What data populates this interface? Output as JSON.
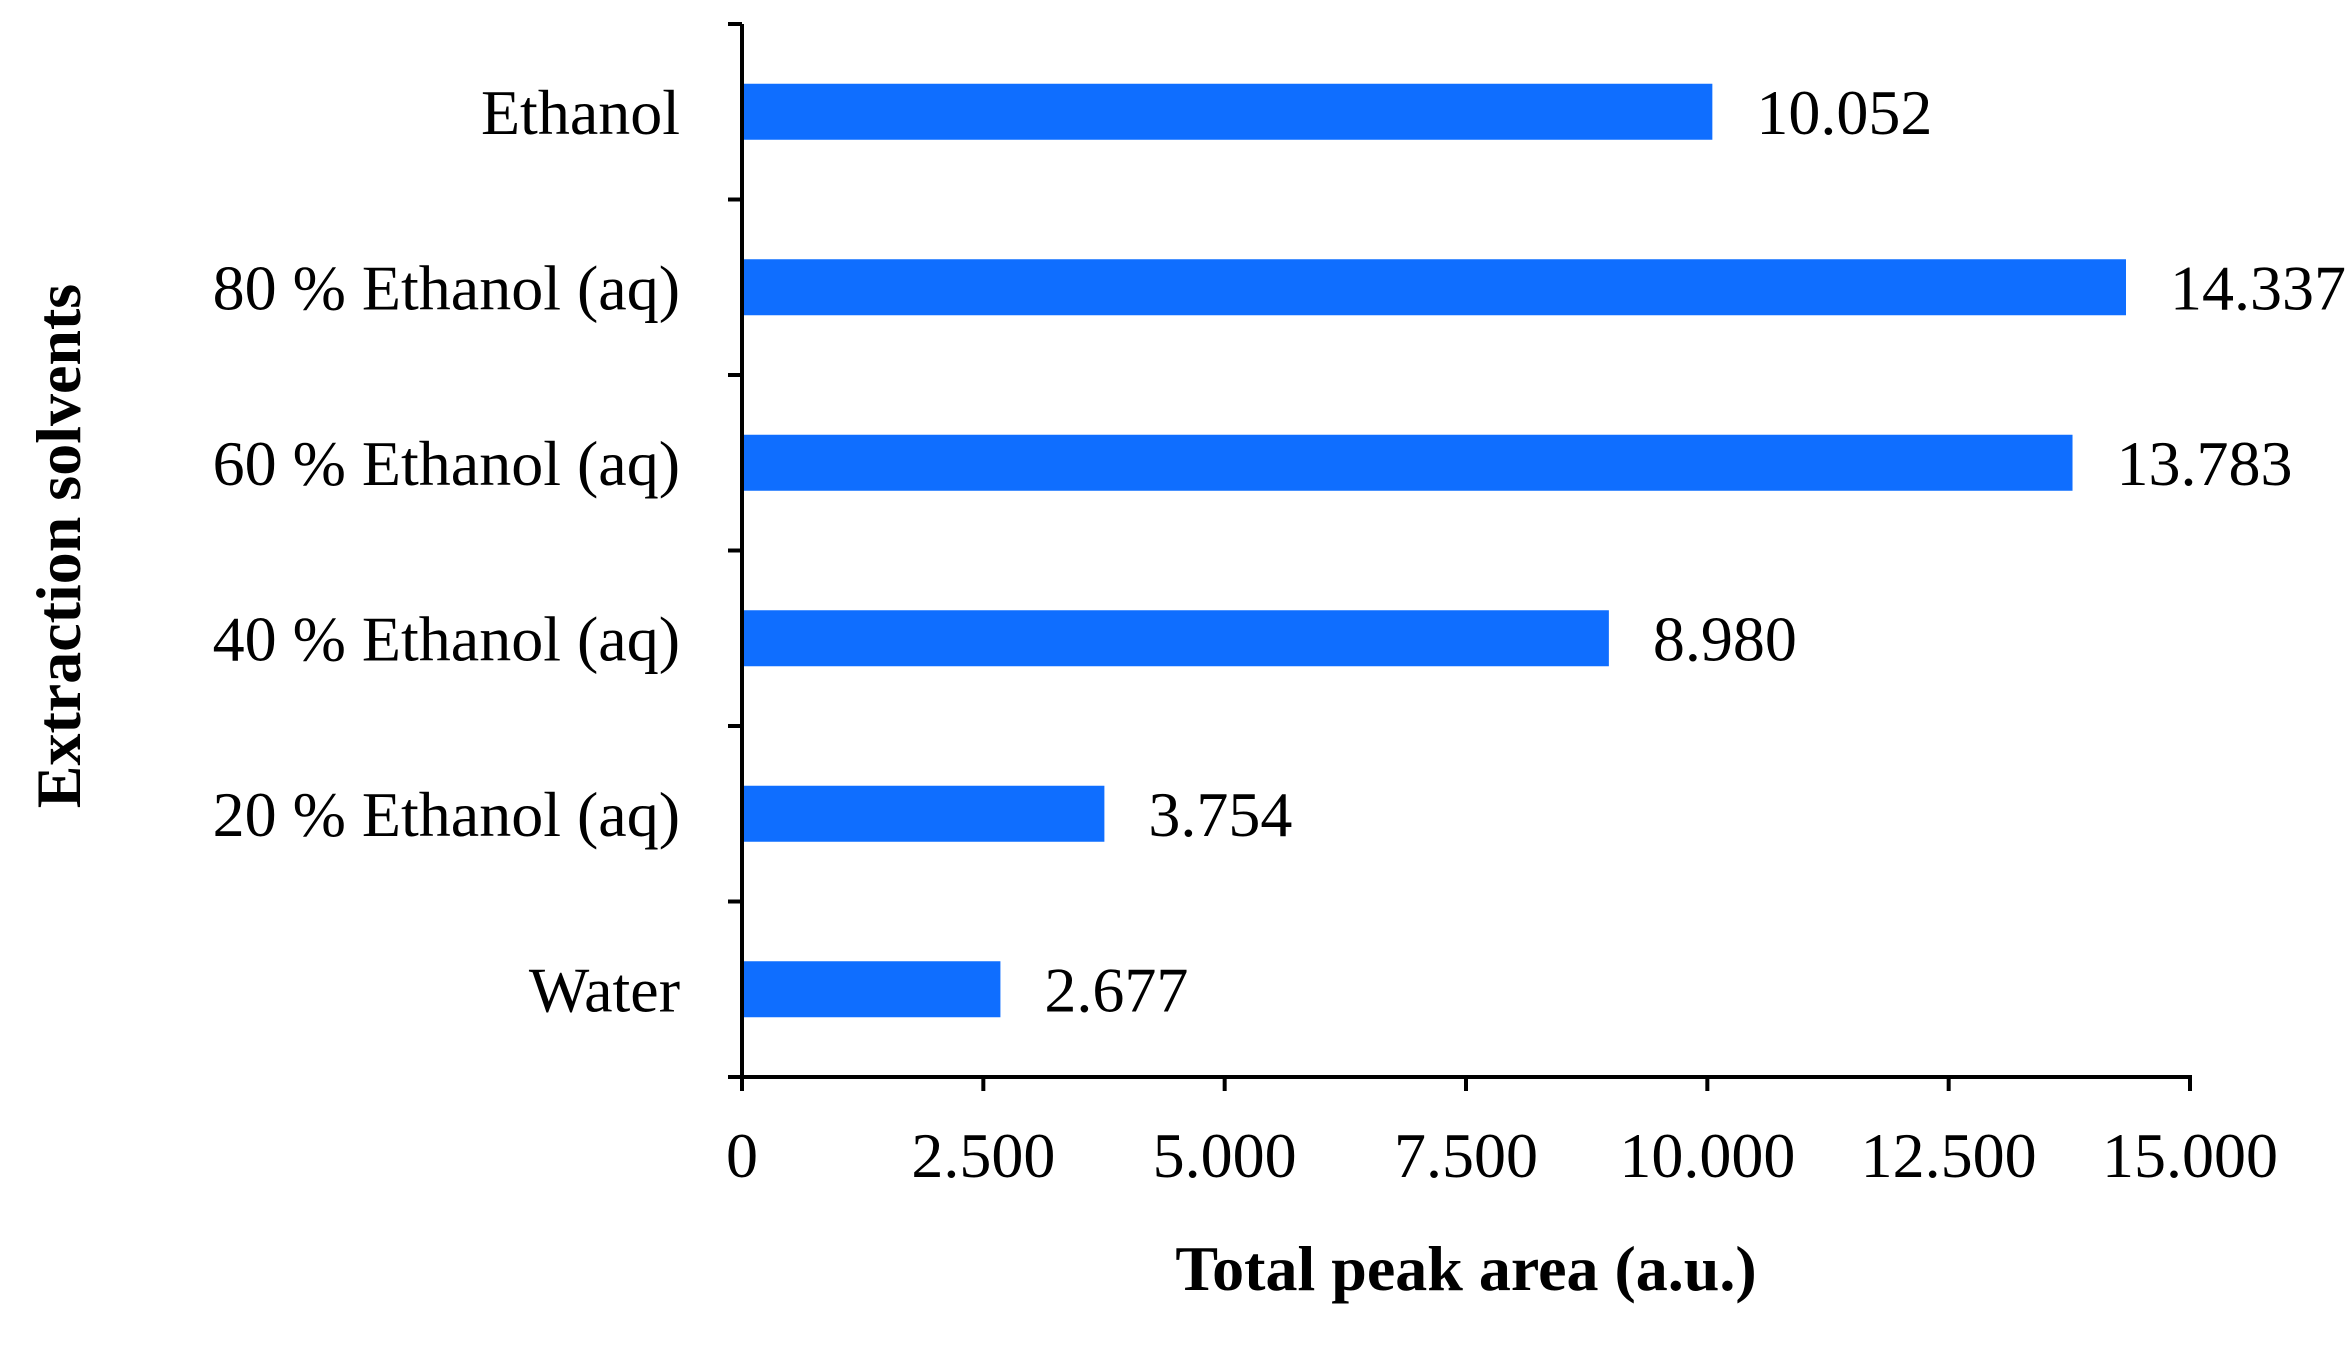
{
  "chart_data": {
    "type": "bar",
    "orientation": "horizontal",
    "categories": [
      "Water",
      "20 % Ethanol (aq)",
      "40 % Ethanol (aq)",
      "60 % Ethanol (aq)",
      "80 % Ethanol (aq)",
      "Ethanol"
    ],
    "values": [
      2.677,
      3.754,
      8.98,
      13.783,
      14.337,
      10.052
    ],
    "value_labels": [
      "2.677",
      "3.754",
      "8.980",
      "13.783",
      "14.337",
      "10.052"
    ],
    "xlabel": "Total peak area (a.u.)",
    "ylabel": "Extraction solvents",
    "xlim": [
      0,
      15
    ],
    "x_ticks": [
      0,
      2.5,
      5,
      7.5,
      10,
      12.5,
      15
    ],
    "x_tick_labels": [
      "0",
      "2.500",
      "5.000",
      "7.500",
      "10.000",
      "12.500",
      "15.000"
    ],
    "grid": false,
    "bar_color": "#0F6EFF",
    "axis_color": "#000000"
  }
}
